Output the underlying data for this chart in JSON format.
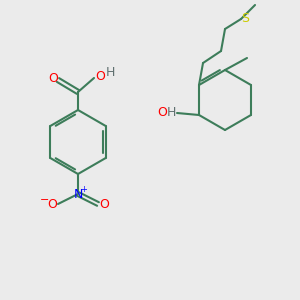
{
  "background_color": "#ebebeb",
  "bond_color": "#3d7d5a",
  "bond_width": 1.5,
  "atom_colors": {
    "O": "#ff0000",
    "N": "#0000ff",
    "S": "#cccc00",
    "H": "#607070",
    "C": "#3d7d5a"
  },
  "figsize": [
    3.0,
    3.0
  ],
  "dpi": 100
}
